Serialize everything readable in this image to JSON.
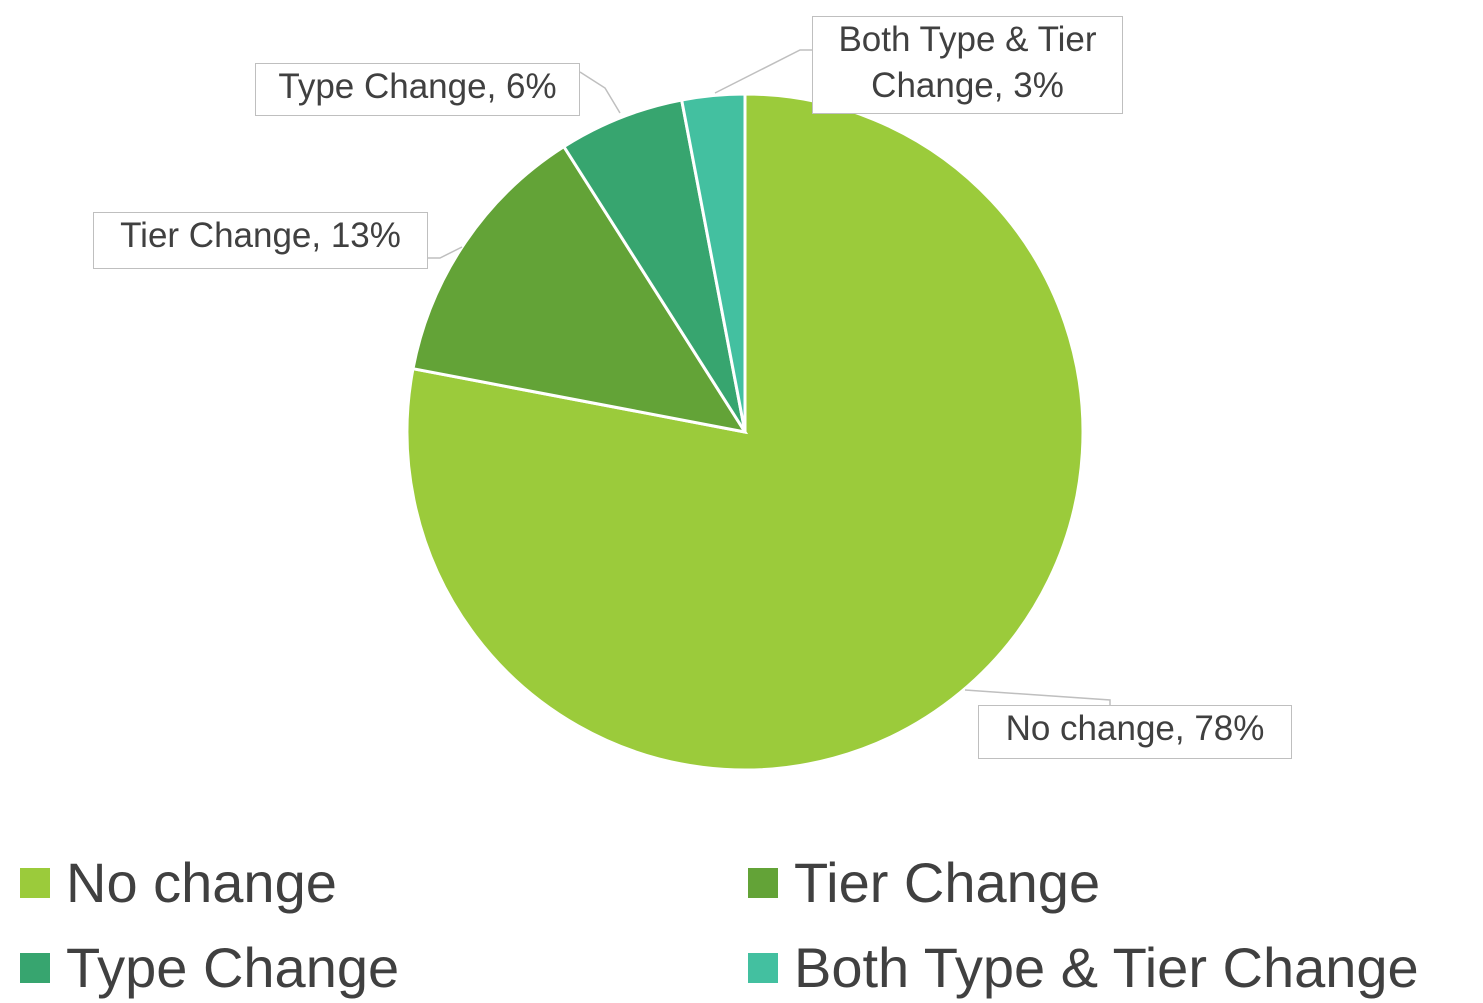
{
  "chart_data": {
    "type": "pie",
    "categories": [
      "No change",
      "Tier Change",
      "Type Change",
      "Both Type & Tier Change"
    ],
    "values": [
      78,
      13,
      6,
      3
    ],
    "value_labels": [
      "No change, 78%",
      "Tier Change, 13%",
      "Type Change, 6%",
      "Both Type & Tier Change, 3%"
    ],
    "colors": [
      "#9bcb3b",
      "#63a337",
      "#37a56f",
      "#43c0a0"
    ],
    "legend": "bottom"
  }
}
